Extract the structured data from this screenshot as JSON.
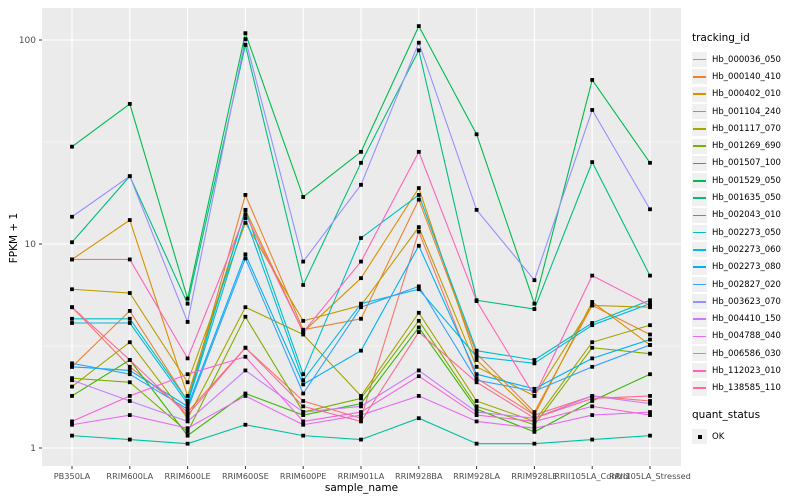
{
  "chart_data": {
    "type": "line",
    "title": "",
    "xlabel": "sample_name",
    "ylabel": "FPKM + 1",
    "y_scale": "log10",
    "ylim": [
      1,
      130
    ],
    "y_ticks": [
      1,
      10,
      100
    ],
    "y_minor_ticks": [
      3.1623,
      31.623
    ],
    "grid": "on",
    "panel_color": "#ebebeb",
    "gridline_color": "#ffffff",
    "point_color": "#000000",
    "point_shape": "square",
    "categories": [
      "PB350LA",
      "RRIM600LA",
      "RRIM600LE",
      "RRIM600SE",
      "RRIM600PE",
      "RRIM901LA",
      "RRIM928BA",
      "RRIM928LA",
      "RRIM928LE",
      "RRII105LA_Control",
      "RRII105LA_Stressed"
    ],
    "legend": {
      "title": "tracking_id",
      "position": "right"
    },
    "quant_status": {
      "title": "quant_status",
      "items": [
        {
          "label": "OK",
          "shape": "square"
        }
      ]
    },
    "series": [
      {
        "name": "Hb_000036_050",
        "color": "#F8766D",
        "values": [
          4.9,
          2.5,
          1.5,
          3.1,
          1.7,
          1.4,
          11.5,
          2.2,
          1.45,
          1.8,
          1.7
        ]
      },
      {
        "name": "Hb_000140_410",
        "color": "#EA8331",
        "values": [
          2.5,
          4.7,
          1.7,
          17.4,
          3.8,
          4.3,
          16.5,
          2.9,
          1.5,
          5.0,
          3.6
        ]
      },
      {
        "name": "Hb_000402_010",
        "color": "#D89000",
        "values": [
          8.4,
          13.1,
          1.8,
          14.7,
          3.7,
          6.8,
          18.8,
          2.7,
          1.45,
          5.2,
          3.2
        ]
      },
      {
        "name": "Hb_001104_240",
        "color": "#C09B00",
        "values": [
          6.0,
          5.75,
          2.1,
          12.7,
          4.2,
          5.0,
          12.1,
          2.5,
          1.8,
          5.0,
          4.9
        ]
      },
      {
        "name": "Hb_001117_070",
        "color": "#A3A500",
        "values": [
          2.0,
          3.3,
          1.4,
          4.9,
          3.6,
          1.8,
          4.6,
          1.7,
          1.35,
          3.3,
          4.0
        ]
      },
      {
        "name": "Hb_001269_690",
        "color": "#7CAE00",
        "values": [
          2.2,
          2.1,
          1.2,
          4.4,
          1.5,
          1.75,
          4.2,
          1.6,
          1.3,
          3.1,
          2.9
        ]
      },
      {
        "name": "Hb_001507_100",
        "color": "#39B600",
        "values": [
          1.8,
          2.7,
          1.15,
          1.85,
          1.45,
          1.65,
          3.9,
          1.55,
          1.2,
          1.7,
          2.3
        ]
      },
      {
        "name": "Hb_001529_050",
        "color": "#00BB4E",
        "values": [
          30,
          48.6,
          5.4,
          108,
          17,
          28.3,
          117,
          34.5,
          5.1,
          63.7,
          25
        ]
      },
      {
        "name": "Hb_001635_050",
        "color": "#00BF7D",
        "values": [
          10.2,
          21.5,
          5.1,
          94.6,
          6.3,
          25,
          89,
          5.3,
          4.8,
          25.2,
          7.0
        ]
      },
      {
        "name": "Hb_002043_010",
        "color": "#00C1A3",
        "values": [
          1.15,
          1.1,
          1.05,
          1.3,
          1.15,
          1.1,
          1.4,
          1.05,
          1.05,
          1.1,
          1.15
        ]
      },
      {
        "name": "Hb_002273_050",
        "color": "#00BFC4",
        "values": [
          4.3,
          4.3,
          1.7,
          14.7,
          2.3,
          10.7,
          17.4,
          3.0,
          2.7,
          4.1,
          5.3
        ]
      },
      {
        "name": "Hb_002273_060",
        "color": "#00BAE0",
        "values": [
          4.1,
          4.1,
          1.65,
          13.4,
          2.15,
          5.1,
          6.0,
          2.8,
          2.6,
          4.0,
          5.1
        ]
      },
      {
        "name": "Hb_002273_080",
        "color": "#00B0F6",
        "values": [
          2.5,
          2.4,
          1.6,
          8.9,
          2.05,
          3.0,
          9.8,
          2.3,
          1.95,
          2.75,
          3.4
        ]
      },
      {
        "name": "Hb_002827_020",
        "color": "#35A2FF",
        "values": [
          2.6,
          2.3,
          1.55,
          8.5,
          1.85,
          4.9,
          6.2,
          2.15,
          1.9,
          2.5,
          3.2
        ]
      },
      {
        "name": "Hb_003623_070",
        "color": "#9590FF",
        "values": [
          13.6,
          21.5,
          4.15,
          101,
          8.2,
          19.5,
          97,
          14.7,
          6.65,
          45.4,
          14.8
        ]
      },
      {
        "name": "Hb_004410_150",
        "color": "#C77CFF",
        "values": [
          2.15,
          1.7,
          1.35,
          2.4,
          1.5,
          1.6,
          2.4,
          1.5,
          1.4,
          1.8,
          1.65
        ]
      },
      {
        "name": "Hb_004788_040",
        "color": "#E76BF3",
        "values": [
          1.3,
          1.45,
          1.25,
          1.8,
          1.3,
          1.45,
          1.8,
          1.35,
          1.25,
          1.45,
          1.5
        ]
      },
      {
        "name": "Hb_006586_030",
        "color": "#FA62DB",
        "values": [
          1.35,
          1.8,
          2.3,
          2.8,
          1.35,
          1.5,
          2.25,
          1.45,
          1.35,
          1.6,
          1.45
        ]
      },
      {
        "name": "Hb_112023_010",
        "color": "#FF62BC",
        "values": [
          8.4,
          8.4,
          2.75,
          14.0,
          3.7,
          8.2,
          28.3,
          5.25,
          1.8,
          7.0,
          5.0
        ]
      },
      {
        "name": "Hb_138585_110",
        "color": "#FF6A98",
        "values": [
          4.9,
          2.7,
          1.45,
          3.1,
          1.6,
          1.35,
          3.7,
          2.1,
          1.4,
          1.75,
          1.8
        ]
      }
    ]
  }
}
